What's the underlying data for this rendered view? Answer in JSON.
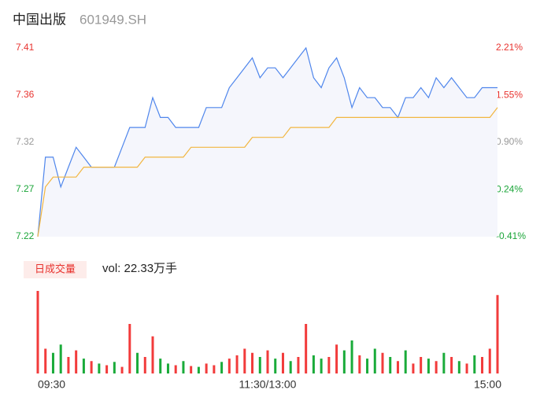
{
  "header": {
    "name": "中国出版",
    "code": "601949.SH"
  },
  "chart_data": [
    {
      "type": "line",
      "xlim": [
        0,
        240
      ],
      "x": [
        0,
        4,
        8,
        12,
        16,
        20,
        24,
        28,
        32,
        36,
        40,
        44,
        48,
        52,
        56,
        60,
        64,
        68,
        72,
        76,
        80,
        84,
        88,
        92,
        96,
        100,
        104,
        108,
        112,
        116,
        120,
        124,
        128,
        132,
        136,
        140,
        144,
        148,
        152,
        156,
        160,
        164,
        168,
        172,
        176,
        180,
        184,
        188,
        192,
        196,
        200,
        204,
        208,
        212,
        216,
        220,
        224,
        228,
        232,
        236,
        240
      ],
      "ylim": [
        7.22,
        7.41
      ],
      "yticks": [
        7.22,
        {
          "value": 7.2675,
          "label": "7.27"
        },
        {
          "value": 7.315,
          "label": "7.32"
        },
        {
          "value": 7.3625,
          "label": "7.36"
        },
        7.41
      ],
      "ytick_colors": [
        "#1aa538",
        "#1aa538",
        "#999999",
        "#e8332f",
        "#e8332f"
      ],
      "y2lim": [
        -0.41,
        2.21
      ],
      "y2ticks": [
        {
          "value": -0.41,
          "label": "-0.41%"
        },
        {
          "value": 0.24,
          "label": "0.24%"
        },
        {
          "value": 0.9,
          "label": "0.90%"
        },
        {
          "value": 1.55,
          "label": "1.55%"
        },
        {
          "value": 2.21,
          "label": "2.21%"
        }
      ],
      "y2tick_colors": [
        "#1aa538",
        "#1aa538",
        "#999999",
        "#e8332f",
        "#e8332f"
      ],
      "area_color": "#f5f6fc",
      "series": [
        {
          "color": "#4f86ec",
          "values": [
            7.22,
            7.3,
            7.3,
            7.27,
            7.29,
            7.31,
            7.3,
            7.29,
            7.29,
            7.29,
            7.29,
            7.31,
            7.33,
            7.33,
            7.33,
            7.36,
            7.34,
            7.34,
            7.33,
            7.33,
            7.33,
            7.33,
            7.35,
            7.35,
            7.35,
            7.37,
            7.38,
            7.39,
            7.4,
            7.38,
            7.39,
            7.39,
            7.38,
            7.39,
            7.4,
            7.41,
            7.38,
            7.37,
            7.39,
            7.4,
            7.38,
            7.35,
            7.37,
            7.36,
            7.36,
            7.35,
            7.35,
            7.34,
            7.36,
            7.36,
            7.37,
            7.36,
            7.38,
            7.37,
            7.38,
            7.37,
            7.36,
            7.36,
            7.37,
            7.37,
            7.37
          ]
        },
        {
          "color": "#f2b640",
          "values": [
            7.22,
            7.27,
            7.28,
            7.28,
            7.28,
            7.28,
            7.29,
            7.29,
            7.29,
            7.29,
            7.29,
            7.29,
            7.29,
            7.29,
            7.3,
            7.3,
            7.3,
            7.3,
            7.3,
            7.3,
            7.31,
            7.31,
            7.31,
            7.31,
            7.31,
            7.31,
            7.31,
            7.31,
            7.32,
            7.32,
            7.32,
            7.32,
            7.32,
            7.33,
            7.33,
            7.33,
            7.33,
            7.33,
            7.33,
            7.34,
            7.34,
            7.34,
            7.34,
            7.34,
            7.34,
            7.34,
            7.34,
            7.34,
            7.34,
            7.34,
            7.34,
            7.34,
            7.34,
            7.34,
            7.34,
            7.34,
            7.34,
            7.34,
            7.34,
            7.34,
            7.35
          ]
        }
      ]
    },
    {
      "type": "bar",
      "label": "日成交量",
      "volume_label": "vol: 22.33万手",
      "xlim": [
        0,
        240
      ],
      "xticks": [
        {
          "value": 0,
          "label": "09:30"
        },
        {
          "value": 120,
          "label": "11:30/13:00"
        },
        {
          "value": 240,
          "label": "15:00"
        }
      ],
      "ylim": [
        0,
        100
      ],
      "series": [
        {
          "color": "#f23b3b",
          "values": [
            100,
            30,
            null,
            null,
            20,
            28,
            null,
            15,
            null,
            10,
            null,
            8,
            60,
            null,
            20,
            45,
            null,
            null,
            10,
            null,
            9,
            null,
            12,
            10,
            null,
            18,
            22,
            30,
            25,
            null,
            28,
            null,
            25,
            null,
            20,
            60,
            null,
            null,
            20,
            35,
            null,
            null,
            22,
            null,
            null,
            25,
            null,
            15,
            null,
            12,
            20,
            null,
            15,
            null,
            20,
            null,
            12,
            null,
            20,
            30,
            95
          ]
        },
        {
          "color": "#1aab3a",
          "values": [
            null,
            null,
            25,
            35,
            null,
            null,
            18,
            null,
            12,
            null,
            14,
            null,
            null,
            25,
            null,
            null,
            18,
            12,
            null,
            15,
            null,
            8,
            null,
            null,
            14,
            null,
            null,
            null,
            null,
            20,
            null,
            18,
            null,
            15,
            null,
            null,
            22,
            18,
            null,
            null,
            28,
            40,
            null,
            18,
            30,
            null,
            20,
            null,
            28,
            null,
            null,
            18,
            null,
            25,
            null,
            15,
            null,
            22,
            null,
            null,
            null
          ]
        }
      ]
    }
  ]
}
